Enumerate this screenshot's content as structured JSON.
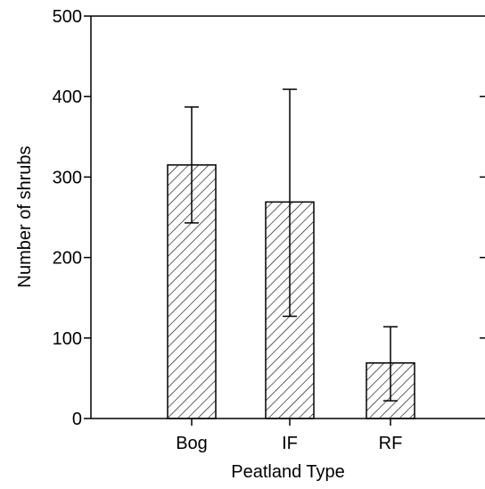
{
  "chart_data": {
    "type": "bar",
    "categories": [
      "Bog",
      "IF",
      "RF"
    ],
    "values": [
      315,
      269,
      69
    ],
    "error_low": [
      243,
      127,
      22
    ],
    "error_high": [
      387,
      409,
      114
    ],
    "xlabel": "Peatland Type",
    "ylabel": "Number of shrubs",
    "ylim": [
      0,
      500
    ],
    "yticks": [
      0,
      100,
      200,
      300,
      400,
      500
    ],
    "bar_fill": "diagonal-hatch",
    "grid": false
  },
  "colors": {
    "ink": "#000000",
    "background": "#ffffff"
  }
}
